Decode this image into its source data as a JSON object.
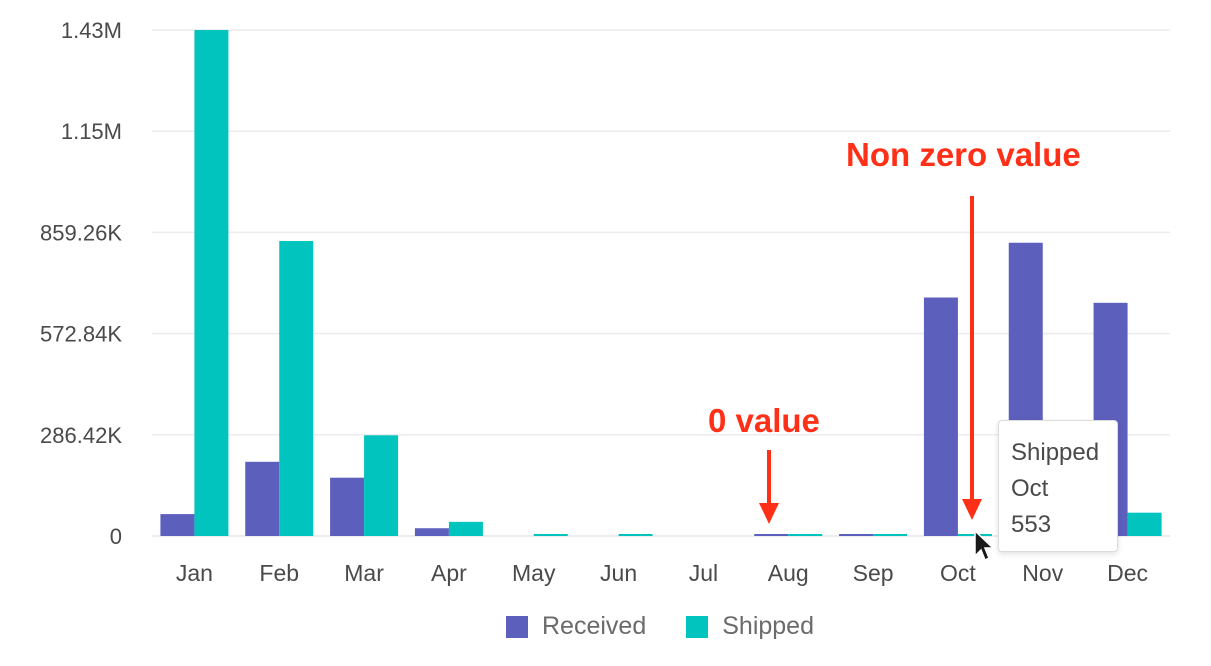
{
  "chart_data": {
    "type": "bar",
    "categories": [
      "Jan",
      "Feb",
      "Mar",
      "Apr",
      "May",
      "Jun",
      "Jul",
      "Aug",
      "Sep",
      "Oct",
      "Nov",
      "Dec"
    ],
    "series": [
      {
        "name": "Received",
        "color": "#5d5fbd",
        "values": [
          62000,
          210000,
          165000,
          22000,
          0,
          0,
          0,
          3000,
          3000,
          675000,
          830000,
          660000
        ]
      },
      {
        "name": "Shipped",
        "color": "#00c4bd",
        "values": [
          1432000,
          835000,
          285000,
          40000,
          3000,
          3000,
          0,
          3000,
          3000,
          553,
          300000,
          66000
        ]
      }
    ],
    "yticks": [
      "0",
      "286.42K",
      "572.84K",
      "859.26K",
      "1.15M",
      "1.43M"
    ],
    "ylim": [
      0,
      1432100
    ],
    "grid": true,
    "legend_position": "bottom"
  },
  "annotations": {
    "zero_label": "0 value",
    "nonzero_label": "Non zero value",
    "color": "#ff3017"
  },
  "tooltip": {
    "series": "Shipped",
    "category": "Oct",
    "value": "553"
  }
}
